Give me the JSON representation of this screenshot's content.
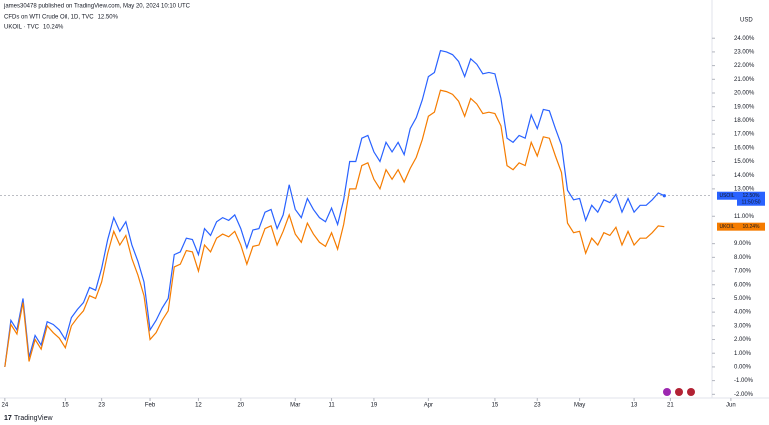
{
  "chart_data": {
    "type": "line",
    "header": "james30478 published on TradingView.com, May 20, 2024 10:10 UTC",
    "currency": "USD",
    "brand": "TradingView",
    "xlim": [
      -0.8,
      126.3
    ],
    "xticks": [
      {
        "value": 0,
        "label": "24"
      },
      {
        "value": 10,
        "label": "15"
      },
      {
        "value": 16,
        "label": "23"
      },
      {
        "value": 24,
        "label": "Feb"
      },
      {
        "value": 32,
        "label": "12"
      },
      {
        "value": 39,
        "label": "20"
      },
      {
        "value": 48,
        "label": "Mar"
      },
      {
        "value": 54,
        "label": "11"
      },
      {
        "value": 61,
        "label": "19"
      },
      {
        "value": 70,
        "label": "Apr"
      },
      {
        "value": 81,
        "label": "15"
      },
      {
        "value": 88,
        "label": "23"
      },
      {
        "value": 95,
        "label": "May"
      },
      {
        "value": 104,
        "label": "13"
      },
      {
        "value": 110,
        "label": "21"
      },
      {
        "value": 120,
        "label": "Jun"
      }
    ],
    "ylim": [
      -2.05,
      24.6
    ],
    "yticks": [
      {
        "value": 24,
        "label": "24.00%"
      },
      {
        "value": 23,
        "label": "23.00%"
      },
      {
        "value": 22,
        "label": "22.00%"
      },
      {
        "value": 21,
        "label": "21.00%"
      },
      {
        "value": 20,
        "label": "20.00%"
      },
      {
        "value": 19,
        "label": "19.00%"
      },
      {
        "value": 18,
        "label": "18.00%"
      },
      {
        "value": 17,
        "label": "17.00%"
      },
      {
        "value": 16,
        "label": "16.00%"
      },
      {
        "value": 15,
        "label": "15.00%"
      },
      {
        "value": 14,
        "label": "14.00%"
      },
      {
        "value": 13,
        "label": "13.00%"
      },
      {
        "value": 11,
        "label": "11.00%"
      },
      {
        "value": 9,
        "label": "9.00%"
      },
      {
        "value": 8,
        "label": "8.00%"
      },
      {
        "value": 7,
        "label": "7.00%"
      },
      {
        "value": 6,
        "label": "6.00%"
      },
      {
        "value": 5,
        "label": "5.00%"
      },
      {
        "value": 4,
        "label": "4.00%"
      },
      {
        "value": 3,
        "label": "3.00%"
      },
      {
        "value": 2,
        "label": "2.00%"
      },
      {
        "value": 1,
        "label": "1.00%"
      },
      {
        "value": 0,
        "label": "0.00%"
      },
      {
        "value": -1,
        "label": "-1.00%"
      },
      {
        "value": -2,
        "label": "-2.00%"
      }
    ],
    "series": [
      {
        "name": "CFDs on WTI Crude Oil, 1D, TVC",
        "legend_value": "12.50%",
        "badge_label": "USOIL",
        "badge_time": "11:50:50",
        "color": "#2962ff",
        "values": [
          0,
          3.4,
          2.7,
          5.0,
          0.7,
          2.3,
          1.6,
          3.3,
          3.1,
          2.7,
          2.0,
          3.6,
          4.2,
          4.7,
          5.8,
          5.6,
          7.2,
          9.3,
          10.9,
          9.9,
          10.6,
          8.9,
          7.7,
          6.2,
          2.7,
          3.4,
          4.3,
          5.0,
          8.2,
          8.4,
          9.4,
          9.3,
          8.2,
          10.1,
          9.6,
          10.6,
          10.9,
          10.7,
          11.1,
          10.1,
          8.7,
          10.0,
          10.1,
          11.3,
          11.5,
          10.1,
          11.1,
          13.3,
          11.5,
          10.9,
          12.3,
          11.5,
          10.9,
          10.6,
          11.6,
          10.4,
          12.2,
          15.0,
          15.0,
          16.7,
          16.9,
          15.7,
          15.0,
          16.4,
          15.7,
          16.4,
          15.5,
          17.4,
          18.2,
          19.5,
          21.2,
          21.5,
          23.1,
          23.0,
          22.8,
          22.3,
          21.2,
          22.5,
          22.1,
          21.4,
          21.5,
          21.4,
          19.6,
          16.7,
          16.4,
          16.9,
          16.7,
          18.4,
          17.4,
          18.8,
          18.7,
          17.4,
          16.2,
          12.9,
          12.2,
          12.3,
          10.7,
          11.8,
          11.3,
          12.2,
          12.0,
          12.6,
          11.3,
          12.3,
          11.3,
          11.8,
          11.8,
          12.2,
          12.7,
          12.5
        ]
      },
      {
        "name": "UKOIL · TVC",
        "legend_value": "10.24%",
        "badge_label": "UKOIL",
        "color": "#f57c00",
        "values": [
          0,
          3.1,
          2.4,
          4.7,
          0.4,
          2.0,
          1.3,
          3.0,
          2.5,
          2.1,
          1.4,
          3.0,
          3.6,
          4.1,
          5.2,
          5.0,
          6.2,
          8.3,
          9.9,
          8.9,
          9.6,
          7.9,
          6.7,
          5.2,
          2.0,
          2.5,
          3.4,
          4.1,
          7.3,
          7.5,
          8.5,
          8.4,
          7.0,
          8.9,
          8.4,
          9.4,
          9.7,
          9.5,
          9.9,
          8.9,
          7.5,
          8.8,
          8.9,
          10.1,
          10.3,
          8.9,
          9.9,
          11.1,
          9.7,
          9.1,
          10.5,
          9.7,
          9.1,
          8.8,
          9.8,
          8.6,
          10.4,
          13.0,
          13.0,
          14.7,
          14.9,
          13.7,
          13.0,
          14.4,
          13.7,
          14.4,
          13.5,
          14.5,
          15.3,
          16.6,
          18.3,
          18.6,
          20.2,
          20.1,
          19.9,
          19.4,
          18.3,
          19.6,
          19.2,
          18.5,
          18.6,
          18.5,
          17.6,
          14.7,
          14.4,
          14.9,
          14.7,
          16.4,
          15.4,
          16.8,
          16.7,
          15.4,
          14.2,
          10.5,
          9.8,
          9.9,
          8.3,
          9.4,
          8.9,
          9.8,
          9.6,
          10.2,
          8.9,
          9.9,
          8.9,
          9.4,
          9.4,
          9.8,
          10.3,
          10.24
        ]
      }
    ]
  }
}
